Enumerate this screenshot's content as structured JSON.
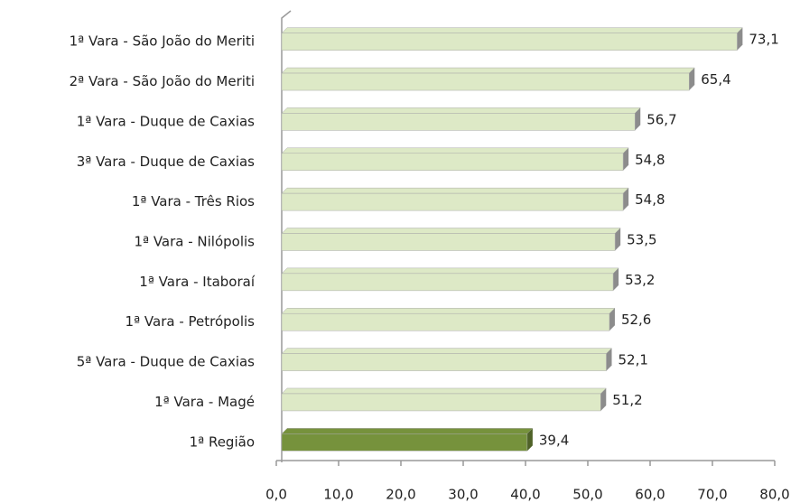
{
  "chart_data": {
    "type": "bar",
    "orientation": "horizontal",
    "categories": [
      "1ª Vara -  São João do Meriti",
      "2ª Vara -  São João do Meriti",
      "1ª Vara -  Duque de Caxias",
      "3ª Vara -  Duque de Caxias",
      "1ª Vara -  Três Rios",
      "1ª Vara -  Nilópolis",
      "1ª Vara -  Itaboraí",
      "1ª Vara -  Petrópolis",
      "5ª Vara -  Duque de Caxias",
      "1ª Vara -  Magé",
      "1ª Região"
    ],
    "values": [
      73.1,
      65.4,
      56.7,
      54.8,
      54.8,
      53.5,
      53.2,
      52.6,
      52.1,
      51.2,
      39.4
    ],
    "value_labels": [
      "73,1",
      "65,4",
      "56,7",
      "54,8",
      "54,8",
      "53,5",
      "53,2",
      "52,6",
      "52,1",
      "51,2",
      "39,4"
    ],
    "colors": [
      "#dde9c6",
      "#dde9c6",
      "#dde9c6",
      "#dde9c6",
      "#dde9c6",
      "#dde9c6",
      "#dde9c6",
      "#dde9c6",
      "#dde9c6",
      "#dde9c6",
      "#76923c"
    ],
    "xlim": [
      0,
      80
    ],
    "xticks": [
      {
        "value": 0,
        "label": "0,0"
      },
      {
        "value": 10,
        "label": "10,0"
      },
      {
        "value": 20,
        "label": "20,0"
      },
      {
        "value": 30,
        "label": "30,0"
      },
      {
        "value": 40,
        "label": "40,0"
      },
      {
        "value": 50,
        "label": "50,0"
      },
      {
        "value": 60,
        "label": "60,0"
      },
      {
        "value": 70,
        "label": "70,0"
      },
      {
        "value": 80,
        "label": "80,0"
      }
    ],
    "grid": false
  }
}
